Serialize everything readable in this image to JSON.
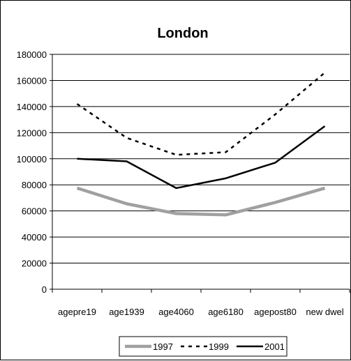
{
  "chart_data": {
    "type": "line",
    "title": "London",
    "categories": [
      "agepre19",
      "age1939",
      "age4060",
      "age6180",
      "agepost80",
      "new dwel"
    ],
    "ylim": [
      0,
      180000
    ],
    "yticks": [
      "0",
      "20000",
      "40000",
      "60000",
      "80000",
      "100000",
      "120000",
      "140000",
      "160000",
      "180000"
    ],
    "grid": "horizontal",
    "legend": "bottom",
    "series": [
      {
        "name": "1997",
        "values": [
          77500,
          65500,
          58000,
          57000,
          66500,
          77500
        ],
        "color": "#a0a0a0",
        "style": "solid-thick"
      },
      {
        "name": "1999",
        "values": [
          142000,
          116000,
          103000,
          105000,
          134000,
          166000
        ],
        "color": "#000000",
        "style": "dotted"
      },
      {
        "name": "2001",
        "values": [
          100000,
          98000,
          77500,
          85000,
          97000,
          125000
        ],
        "color": "#000000",
        "style": "solid"
      }
    ]
  }
}
